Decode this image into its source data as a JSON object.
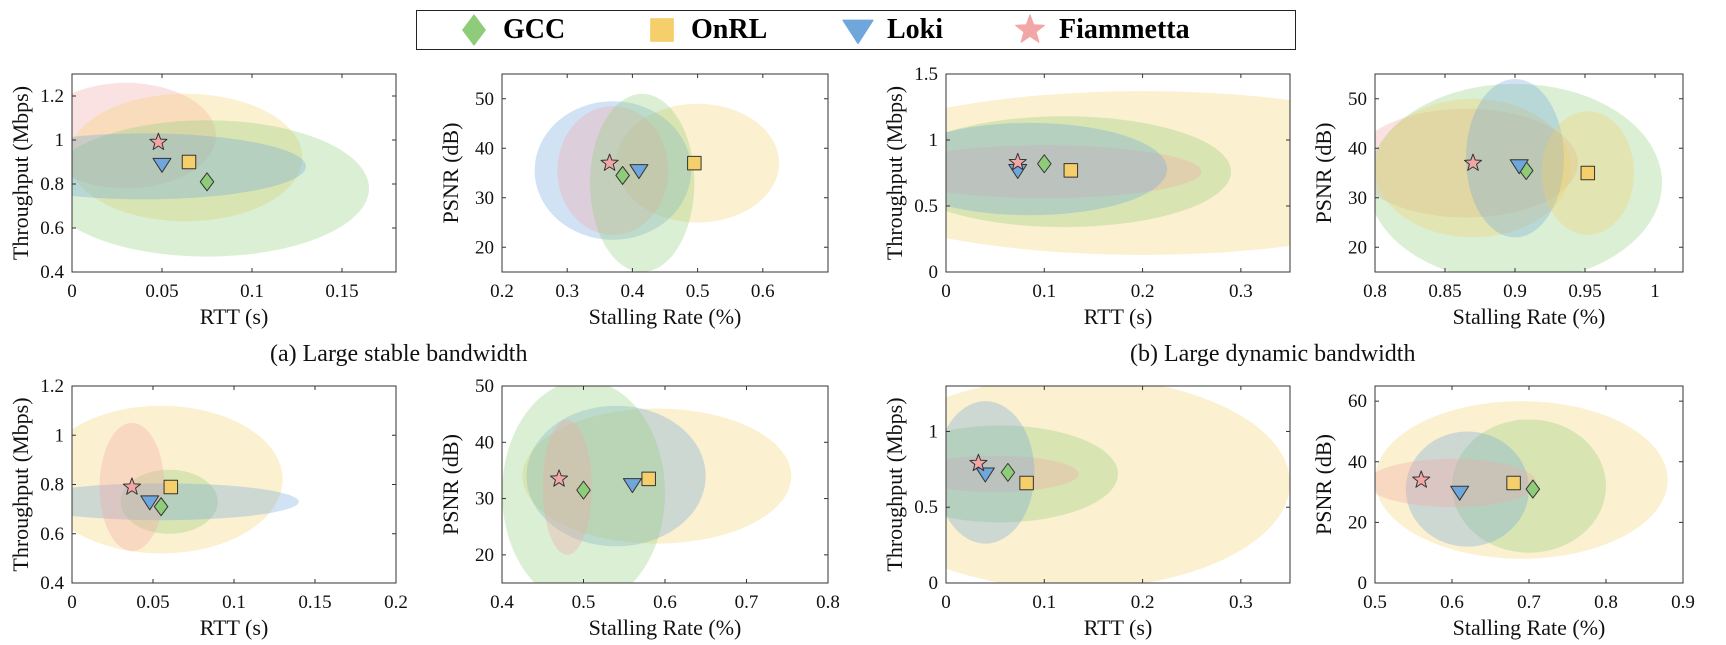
{
  "legend": [
    {
      "name": "GCC",
      "color": "#8fcc7a",
      "marker": "diamond"
    },
    {
      "name": "OnRL",
      "color": "#f4cf6b",
      "marker": "square"
    },
    {
      "name": "Loki",
      "color": "#6fa6dc",
      "marker": "triangle-down"
    },
    {
      "name": "Fiammetta",
      "color": "#f2a6a6",
      "marker": "star"
    }
  ],
  "captions": {
    "a": "(a) Large stable bandwidth",
    "b": "(b) Large dynamic bandwidth"
  },
  "chart_data": [
    {
      "type": "scatter",
      "xlabel": "RTT (s)",
      "ylabel": "Throughput (Mbps)",
      "xlim": [
        0,
        0.18
      ],
      "ylim": [
        0.4,
        1.3
      ],
      "xticks": [
        0,
        0.05,
        0.1,
        0.15
      ],
      "xtick_labels": [
        "0",
        "0.05",
        "0.1",
        "0.15"
      ],
      "yticks": [
        0.4,
        0.6,
        0.8,
        1.0,
        1.2
      ],
      "ytick_labels": [
        "0.4",
        "0.6",
        "0.8",
        "1",
        "1.2"
      ],
      "points": [
        {
          "series": "GCC",
          "x": 0.075,
          "y": 0.81
        },
        {
          "series": "OnRL",
          "x": 0.065,
          "y": 0.9
        },
        {
          "series": "Loki",
          "x": 0.05,
          "y": 0.89
        },
        {
          "series": "Fiammetta",
          "x": 0.048,
          "y": 0.99
        }
      ],
      "ellipses": [
        {
          "series": "Fiammetta",
          "cx": 0.03,
          "cy": 1.02,
          "rx": 0.05,
          "ry": 0.24
        },
        {
          "series": "OnRL",
          "cx": 0.063,
          "cy": 0.92,
          "rx": 0.065,
          "ry": 0.29
        },
        {
          "series": "GCC",
          "cx": 0.075,
          "cy": 0.78,
          "rx": 0.09,
          "ry": 0.31
        },
        {
          "series": "Loki",
          "cx": 0.04,
          "cy": 0.88,
          "rx": 0.09,
          "ry": 0.15
        }
      ]
    },
    {
      "type": "scatter",
      "xlabel": "Stalling Rate (%)",
      "ylabel": "PSNR (dB)",
      "xlim": [
        0.2,
        0.7
      ],
      "ylim": [
        15,
        55
      ],
      "xticks": [
        0.2,
        0.3,
        0.4,
        0.5,
        0.6
      ],
      "xtick_labels": [
        "0.2",
        "0.3",
        "0.4",
        "0.5",
        "0.6"
      ],
      "yticks": [
        20,
        30,
        40,
        50
      ],
      "ytick_labels": [
        "20",
        "30",
        "40",
        "50"
      ],
      "points": [
        {
          "series": "GCC",
          "x": 0.385,
          "y": 34.5
        },
        {
          "series": "OnRL",
          "x": 0.495,
          "y": 37
        },
        {
          "series": "Loki",
          "x": 0.41,
          "y": 35.5
        },
        {
          "series": "Fiammetta",
          "x": 0.365,
          "y": 37
        }
      ],
      "ellipses": [
        {
          "series": "OnRL",
          "cx": 0.5,
          "cy": 37,
          "rx": 0.125,
          "ry": 12
        },
        {
          "series": "Loki",
          "cx": 0.37,
          "cy": 35.5,
          "rx": 0.12,
          "ry": 14
        },
        {
          "series": "Fiammetta",
          "cx": 0.37,
          "cy": 35.5,
          "rx": 0.085,
          "ry": 13
        },
        {
          "series": "GCC",
          "cx": 0.415,
          "cy": 33,
          "rx": 0.08,
          "ry": 18
        }
      ]
    },
    {
      "type": "scatter",
      "xlabel": "RTT (s)",
      "ylabel": "Throughput (Mbps)",
      "xlim": [
        0,
        0.35
      ],
      "ylim": [
        0,
        1.5
      ],
      "xticks": [
        0,
        0.1,
        0.2,
        0.3
      ],
      "xtick_labels": [
        "0",
        "0.1",
        "0.2",
        "0.3"
      ],
      "yticks": [
        0,
        0.5,
        1.0,
        1.5
      ],
      "ytick_labels": [
        "0",
        "0.5",
        "1",
        "1.5"
      ],
      "points": [
        {
          "series": "GCC",
          "x": 0.1,
          "y": 0.82
        },
        {
          "series": "OnRL",
          "x": 0.127,
          "y": 0.77
        },
        {
          "series": "Loki",
          "x": 0.073,
          "y": 0.77
        },
        {
          "series": "Fiammetta",
          "x": 0.073,
          "y": 0.83
        }
      ],
      "ellipses": [
        {
          "series": "OnRL",
          "cx": 0.2,
          "cy": 0.75,
          "rx": 0.33,
          "ry": 0.62
        },
        {
          "series": "GCC",
          "cx": 0.12,
          "cy": 0.76,
          "rx": 0.17,
          "ry": 0.42
        },
        {
          "series": "Fiammetta",
          "cx": 0.1,
          "cy": 0.76,
          "rx": 0.16,
          "ry": 0.2
        },
        {
          "series": "Loki",
          "cx": 0.085,
          "cy": 0.78,
          "rx": 0.14,
          "ry": 0.35
        }
      ]
    },
    {
      "type": "scatter",
      "xlabel": "Stalling Rate (%)",
      "ylabel": "PSNR (dB)",
      "xlim": [
        0.8,
        1.02
      ],
      "ylim": [
        15,
        55
      ],
      "xticks": [
        0.8,
        0.85,
        0.9,
        0.95,
        1.0
      ],
      "xtick_labels": [
        "0.8",
        "0.85",
        "0.9",
        "0.95",
        "1"
      ],
      "yticks": [
        20,
        30,
        40,
        50
      ],
      "ytick_labels": [
        "20",
        "30",
        "40",
        "50"
      ],
      "points": [
        {
          "series": "GCC",
          "x": 0.908,
          "y": 35.5
        },
        {
          "series": "OnRL",
          "x": 0.952,
          "y": 35
        },
        {
          "series": "Loki",
          "x": 0.903,
          "y": 36.5
        },
        {
          "series": "Fiammetta",
          "x": 0.87,
          "y": 37
        }
      ],
      "ellipses": [
        {
          "series": "Fiammetta",
          "cx": 0.865,
          "cy": 37,
          "rx": 0.08,
          "ry": 11
        },
        {
          "series": "GCC",
          "cx": 0.9,
          "cy": 33,
          "rx": 0.105,
          "ry": 20
        },
        {
          "series": "OnRL",
          "cx": 0.87,
          "cy": 36,
          "rx": 0.07,
          "ry": 14
        },
        {
          "series": "Loki",
          "cx": 0.9,
          "cy": 38,
          "rx": 0.035,
          "ry": 16
        },
        {
          "series": "OnRL",
          "cx": 0.952,
          "cy": 35,
          "rx": 0.033,
          "ry": 12.5
        }
      ]
    },
    {
      "type": "scatter",
      "xlabel": "RTT (s)",
      "ylabel": "Throughput (Mbps)",
      "xlim": [
        0,
        0.2
      ],
      "ylim": [
        0.4,
        1.2
      ],
      "xticks": [
        0,
        0.05,
        0.1,
        0.15,
        0.2
      ],
      "xtick_labels": [
        "0",
        "0.05",
        "0.1",
        "0.15",
        "0.2"
      ],
      "yticks": [
        0.4,
        0.6,
        0.8,
        1.0,
        1.2
      ],
      "ytick_labels": [
        "0.4",
        "0.6",
        "0.8",
        "1",
        "1.2"
      ],
      "points": [
        {
          "series": "GCC",
          "x": 0.055,
          "y": 0.71
        },
        {
          "series": "OnRL",
          "x": 0.061,
          "y": 0.79
        },
        {
          "series": "Loki",
          "x": 0.048,
          "y": 0.73
        },
        {
          "series": "Fiammetta",
          "x": 0.037,
          "y": 0.79
        }
      ],
      "ellipses": [
        {
          "series": "OnRL",
          "cx": 0.055,
          "cy": 0.82,
          "rx": 0.075,
          "ry": 0.3
        },
        {
          "series": "GCC",
          "cx": 0.06,
          "cy": 0.73,
          "rx": 0.03,
          "ry": 0.13
        },
        {
          "series": "Loki",
          "cx": 0.055,
          "cy": 0.73,
          "rx": 0.085,
          "ry": 0.075
        },
        {
          "series": "Fiammetta",
          "cx": 0.037,
          "cy": 0.79,
          "rx": 0.02,
          "ry": 0.26
        }
      ]
    },
    {
      "type": "scatter",
      "xlabel": "Stalling Rate (%)",
      "ylabel": "PSNR (dB)",
      "xlim": [
        0.4,
        0.8
      ],
      "ylim": [
        15,
        50
      ],
      "xticks": [
        0.4,
        0.5,
        0.6,
        0.7,
        0.8
      ],
      "xtick_labels": [
        "0.4",
        "0.5",
        "0.6",
        "0.7",
        "0.8"
      ],
      "yticks": [
        20,
        30,
        40,
        50
      ],
      "ytick_labels": [
        "20",
        "30",
        "40",
        "50"
      ],
      "points": [
        {
          "series": "GCC",
          "x": 0.5,
          "y": 31.5
        },
        {
          "series": "OnRL",
          "x": 0.58,
          "y": 33.5
        },
        {
          "series": "Loki",
          "x": 0.56,
          "y": 32.5
        },
        {
          "series": "Fiammetta",
          "x": 0.47,
          "y": 33.5
        }
      ],
      "ellipses": [
        {
          "series": "OnRL",
          "cx": 0.59,
          "cy": 34,
          "rx": 0.165,
          "ry": 12
        },
        {
          "series": "Loki",
          "cx": 0.54,
          "cy": 34,
          "rx": 0.11,
          "ry": 12.5
        },
        {
          "series": "GCC",
          "cx": 0.5,
          "cy": 31,
          "rx": 0.1,
          "ry": 20
        },
        {
          "series": "Fiammetta",
          "cx": 0.48,
          "cy": 32,
          "rx": 0.03,
          "ry": 12
        }
      ]
    },
    {
      "type": "scatter",
      "xlabel": "RTT (s)",
      "ylabel": "Throughput (Mbps)",
      "xlim": [
        0,
        0.35
      ],
      "ylim": [
        0,
        1.3
      ],
      "xticks": [
        0,
        0.1,
        0.2,
        0.3
      ],
      "xtick_labels": [
        "0",
        "0.1",
        "0.2",
        "0.3"
      ],
      "yticks": [
        0,
        0.5,
        1.0
      ],
      "ytick_labels": [
        "0",
        "0.5",
        "1"
      ],
      "points": [
        {
          "series": "GCC",
          "x": 0.063,
          "y": 0.73
        },
        {
          "series": "OnRL",
          "x": 0.082,
          "y": 0.66
        },
        {
          "series": "Loki",
          "x": 0.04,
          "y": 0.72
        },
        {
          "series": "Fiammetta",
          "x": 0.033,
          "y": 0.79
        }
      ],
      "ellipses": [
        {
          "series": "OnRL",
          "cx": 0.13,
          "cy": 0.66,
          "rx": 0.22,
          "ry": 0.7
        },
        {
          "series": "GCC",
          "cx": 0.055,
          "cy": 0.72,
          "rx": 0.12,
          "ry": 0.32
        },
        {
          "series": "Fiammetta",
          "cx": 0.05,
          "cy": 0.72,
          "rx": 0.085,
          "ry": 0.12
        },
        {
          "series": "Loki",
          "cx": 0.04,
          "cy": 0.73,
          "rx": 0.05,
          "ry": 0.47
        }
      ]
    },
    {
      "type": "scatter",
      "xlabel": "Stalling Rate (%)",
      "ylabel": "PSNR (dB)",
      "xlim": [
        0.5,
        0.9
      ],
      "ylim": [
        0,
        65
      ],
      "xticks": [
        0.5,
        0.6,
        0.7,
        0.8,
        0.9
      ],
      "xtick_labels": [
        "0.5",
        "0.6",
        "0.7",
        "0.8",
        "0.9"
      ],
      "yticks": [
        0,
        20,
        40,
        60
      ],
      "ytick_labels": [
        "0",
        "20",
        "40",
        "60"
      ],
      "points": [
        {
          "series": "GCC",
          "x": 0.705,
          "y": 31
        },
        {
          "series": "OnRL",
          "x": 0.68,
          "y": 33
        },
        {
          "series": "Loki",
          "x": 0.61,
          "y": 30
        },
        {
          "series": "Fiammetta",
          "x": 0.56,
          "y": 34
        }
      ],
      "ellipses": [
        {
          "series": "OnRL",
          "cx": 0.69,
          "cy": 34,
          "rx": 0.19,
          "ry": 26
        },
        {
          "series": "GCC",
          "cx": 0.7,
          "cy": 32,
          "rx": 0.1,
          "ry": 22
        },
        {
          "series": "Loki",
          "cx": 0.62,
          "cy": 31,
          "rx": 0.08,
          "ry": 19
        },
        {
          "series": "Fiammetta",
          "cx": 0.6,
          "cy": 33,
          "rx": 0.11,
          "ry": 8
        }
      ]
    }
  ]
}
